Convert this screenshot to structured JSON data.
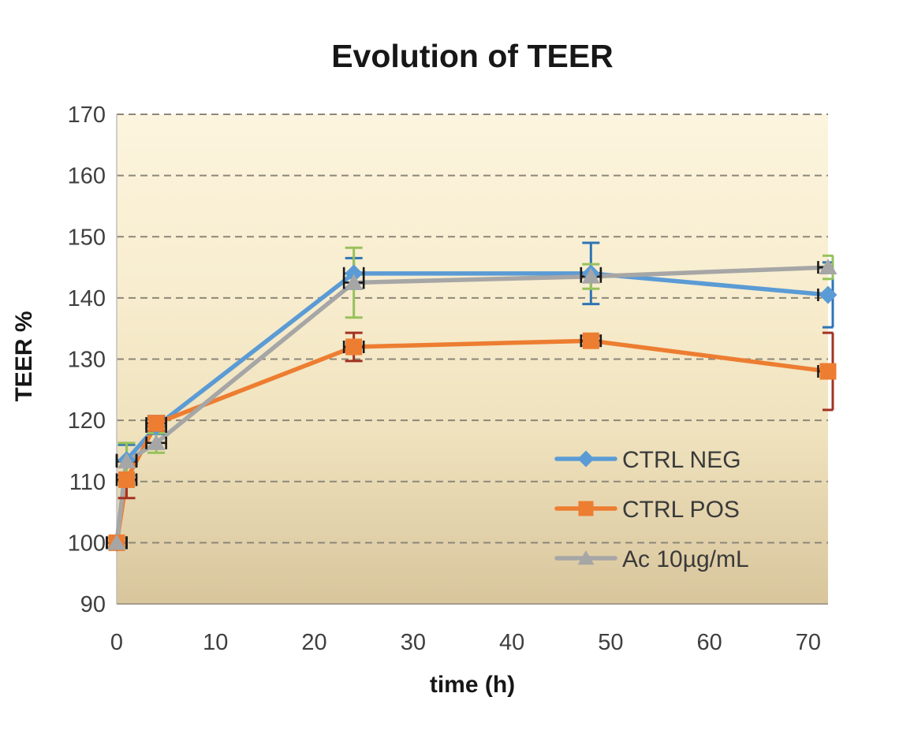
{
  "chart_data": {
    "type": "line",
    "title": "Evolution of TEER",
    "xlabel": "time (h)",
    "ylabel": "TEER %",
    "xlim": [
      0,
      72
    ],
    "ylim": [
      90,
      170
    ],
    "xticks": [
      0,
      10,
      20,
      30,
      40,
      50,
      60,
      70
    ],
    "yticks": [
      90,
      100,
      110,
      120,
      130,
      140,
      150,
      160,
      170
    ],
    "grid": {
      "horizontal": true,
      "style": "dashed",
      "color": "#8D8779"
    },
    "legend": {
      "position": "inside-right"
    },
    "x": [
      0,
      1,
      4,
      24,
      48,
      72
    ],
    "series": [
      {
        "name": "CTRL NEG",
        "marker": "diamond",
        "color": "#5B9BD5",
        "error_color": "#2E74B5",
        "values": [
          100,
          113.5,
          119,
          144,
          144,
          140.5
        ],
        "yerr": [
          0.8,
          2.5,
          1.2,
          2.5,
          5,
          5.3
        ]
      },
      {
        "name": "CTRL POS",
        "marker": "square",
        "color": "#ED7D31",
        "error_color": "#A33223",
        "values": [
          100,
          110.3,
          119.5,
          132,
          133,
          128
        ],
        "yerr": [
          0.8,
          3,
          1.2,
          2.3,
          0.8,
          6.3
        ]
      },
      {
        "name": "Ac 10µg/mL",
        "marker": "triangle",
        "color": "#A6A6A6",
        "error_color": "#97C15C",
        "values": [
          100,
          113.3,
          116.3,
          142.5,
          143.5,
          145
        ],
        "yerr": [
          0.8,
          3,
          1.6,
          5.7,
          2,
          1.9
        ]
      }
    ],
    "xerr_hours": 1,
    "xerr_color": "#1A1A1A",
    "plot_bg_gradient": [
      "#FCF4DE",
      "#F8EDCF",
      "#EFE2BD",
      "#D8C59C"
    ],
    "axis_color": "#ABA success399",
    "tick_color": "#3F3F3F"
  }
}
